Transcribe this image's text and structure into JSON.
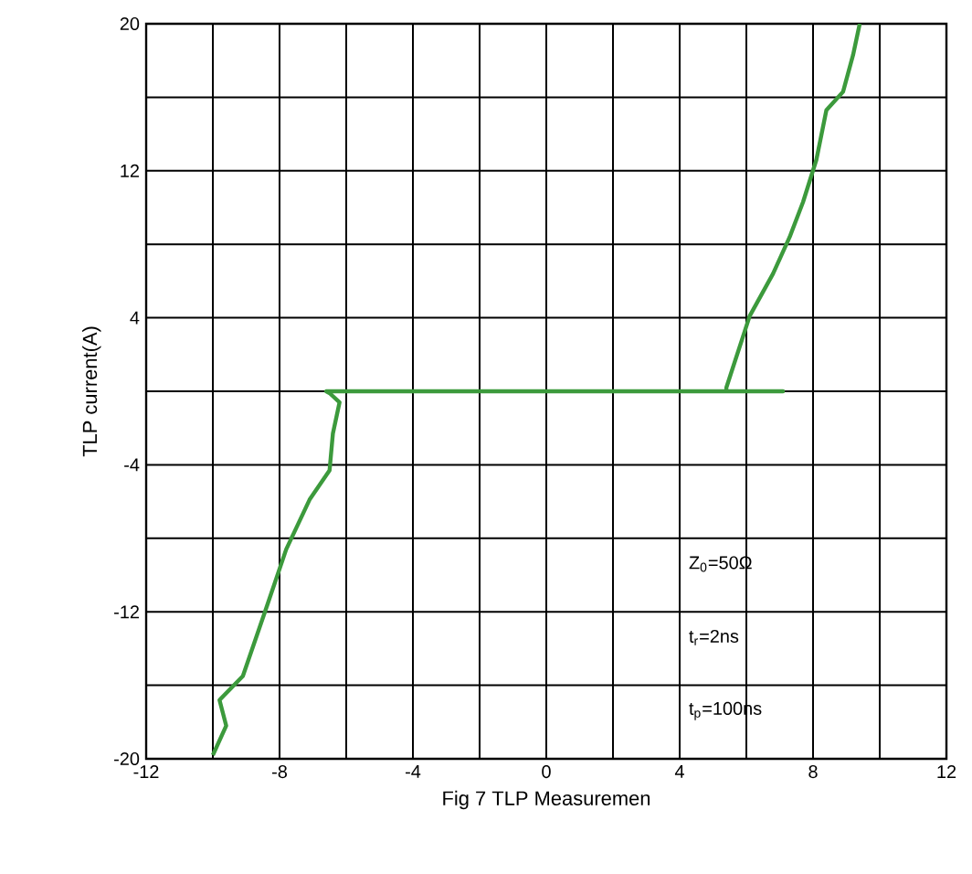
{
  "chart_data": {
    "type": "line",
    "xlabel": "Fig 7 TLP Measuremen",
    "ylabel": "TLP current(A)",
    "xlim": [
      -12,
      12
    ],
    "ylim": [
      -20,
      20
    ],
    "xticks": [
      -12,
      {
        "value": -10,
        "label": null
      },
      -8,
      {
        "value": -6,
        "label": null
      },
      -4,
      {
        "value": -2,
        "label": null
      },
      0,
      {
        "value": 2,
        "label": null
      },
      4,
      {
        "value": 6,
        "label": null
      },
      8,
      {
        "value": 10,
        "label": null
      },
      12
    ],
    "yticks": [
      -20,
      {
        "value": -16,
        "label": null
      },
      -12,
      {
        "value": -8,
        "label": null
      },
      -4,
      {
        "value": 0,
        "label": null
      },
      4,
      {
        "value": 8,
        "label": null
      },
      12,
      {
        "value": 16,
        "label": null
      },
      20
    ],
    "grid": true,
    "marker": "none",
    "line_style": "solid",
    "annotations": [
      "Z$_{0}$=50Ω",
      "t$_{r}$=2ns",
      "t$_{p}$=100ns"
    ],
    "series": [
      {
        "color": "#3c9a3c",
        "x": [
          -10.0,
          -9.6,
          -9.8,
          -9.1,
          -8.4,
          -7.8,
          -7.1,
          -6.5,
          -6.4,
          -6.2,
          -6.5,
          -6.6,
          7.1,
          5.4,
          5.4,
          6.1,
          6.8,
          7.3,
          7.7,
          8.1,
          8.4,
          8.9,
          9.2,
          9.4
        ],
        "values": [
          -19.8,
          -18.2,
          -16.8,
          -15.5,
          -11.8,
          -8.6,
          -5.9,
          -4.3,
          -2.3,
          -0.6,
          -0.1,
          0,
          0,
          0,
          0.2,
          4.1,
          6.4,
          8.4,
          10.3,
          12.6,
          15.3,
          16.3,
          18.3,
          20
        ]
      }
    ]
  }
}
